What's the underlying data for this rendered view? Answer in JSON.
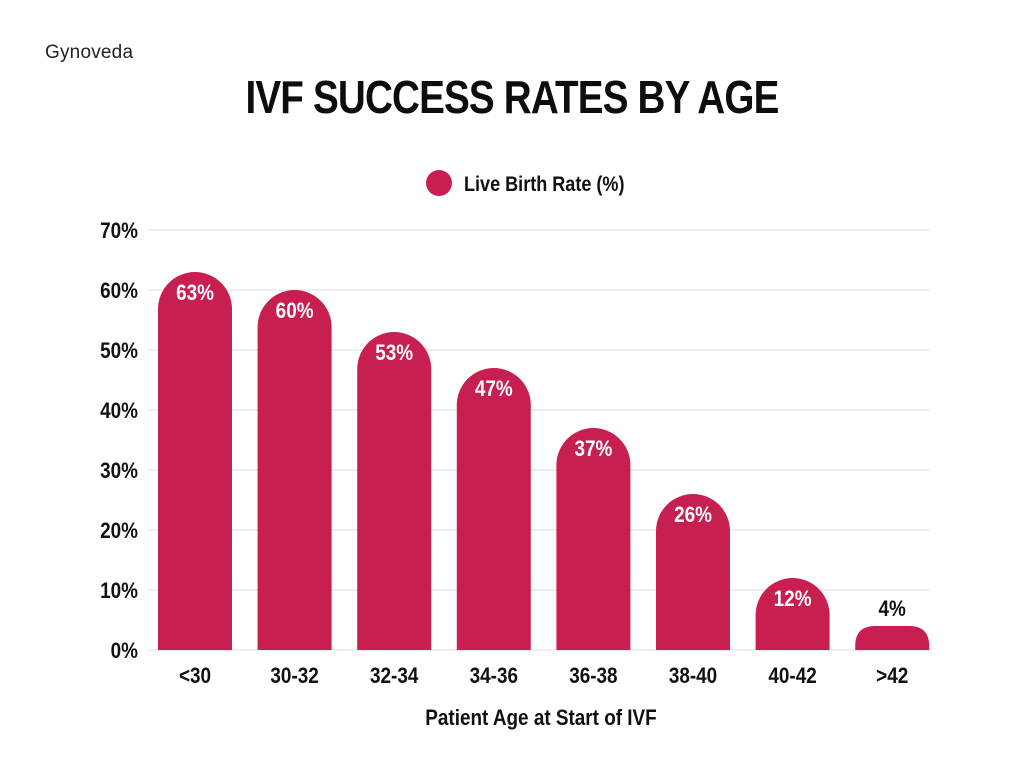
{
  "brand": "Gynoveda",
  "chart_data": {
    "type": "bar",
    "title": "IVF SUCCESS RATES BY AGE",
    "categories": [
      "<30",
      "30-32",
      "32-34",
      "34-36",
      "36-38",
      "38-40",
      "40-42",
      ">42"
    ],
    "series": [
      {
        "name": "Live Birth Rate (%)",
        "values": [
          63,
          60,
          53,
          47,
          37,
          26,
          12,
          4
        ],
        "labels": [
          "63%",
          "60%",
          "53%",
          "47%",
          "37%",
          "26%",
          "12%",
          "4%"
        ]
      }
    ],
    "xlabel": "Patient Age at Start of IVF",
    "ylabel": "",
    "ylim": [
      0,
      70
    ],
    "yticks": [
      "0%",
      "10%",
      "20%",
      "30%",
      "40%",
      "50%",
      "60%",
      "70%"
    ],
    "grid": true,
    "legend": "top-center"
  },
  "colors": {
    "bar": "#c81f51",
    "grid": "#dedede",
    "text": "#111111"
  }
}
